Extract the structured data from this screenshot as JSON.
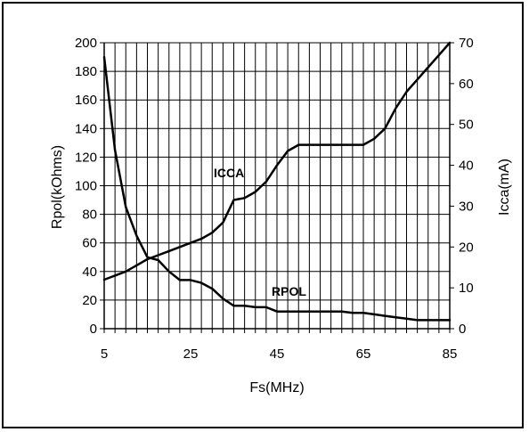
{
  "chart_data": {
    "type": "line",
    "xlabel": "Fs(MHz)",
    "ylabel_left": "Rpol(kOhms)",
    "ylabel_right": "Icca(mA)",
    "xlim": [
      5,
      85
    ],
    "ylim_left": [
      0,
      200
    ],
    "ylim_right": [
      0,
      70
    ],
    "x_ticks": [
      5,
      25,
      45,
      65,
      85
    ],
    "x_gridlines": [
      5,
      7.5,
      10,
      12.5,
      15,
      17.5,
      20,
      22.5,
      25,
      27.5,
      30,
      32.5,
      35,
      37.5,
      40,
      42.5,
      45,
      47.5,
      50,
      52.5,
      55,
      57.5,
      60,
      62.5,
      65,
      67.5,
      70,
      72.5,
      75,
      77.5,
      80,
      82.5,
      85
    ],
    "y_ticks_left": [
      0,
      20,
      40,
      60,
      80,
      100,
      120,
      140,
      160,
      180,
      200
    ],
    "y_ticks_right": [
      0,
      10,
      20,
      30,
      40,
      50,
      60,
      70
    ],
    "grid": true,
    "series": [
      {
        "name": "ICCA",
        "axis": "right",
        "x": [
          5,
          7.5,
          10,
          12.5,
          15,
          17.5,
          20,
          22.5,
          25,
          27.5,
          30,
          32.5,
          35,
          37.5,
          40,
          42.5,
          45,
          47.5,
          50,
          52.5,
          55,
          57.5,
          60,
          62.5,
          65,
          67.5,
          70,
          72.5,
          75,
          77.5,
          80,
          82.5,
          85
        ],
        "values": [
          12,
          13,
          14,
          15.5,
          17,
          18,
          19,
          20,
          21,
          22,
          23.5,
          26,
          31.5,
          32,
          33.5,
          36,
          40,
          43.5,
          45,
          45,
          45,
          45,
          45,
          45,
          45,
          46.5,
          49,
          54,
          58,
          61,
          64,
          67,
          70
        ]
      },
      {
        "name": "RPOL",
        "axis": "left",
        "x": [
          5,
          7.5,
          10,
          12.5,
          15,
          17.5,
          20,
          22.5,
          25,
          27.5,
          30,
          32.5,
          35,
          37.5,
          40,
          42.5,
          45,
          47.5,
          50,
          52.5,
          55,
          57.5,
          60,
          62.5,
          65,
          67.5,
          70,
          72.5,
          75,
          77.5,
          80,
          82.5,
          85
        ],
        "values": [
          190,
          125,
          85,
          65,
          50,
          48,
          40,
          34,
          34,
          32,
          28,
          21,
          16,
          16,
          15,
          15,
          12,
          12,
          12,
          12,
          12,
          12,
          12,
          11,
          11,
          10,
          9,
          8,
          7,
          6,
          6,
          6,
          6
        ]
      }
    ]
  }
}
